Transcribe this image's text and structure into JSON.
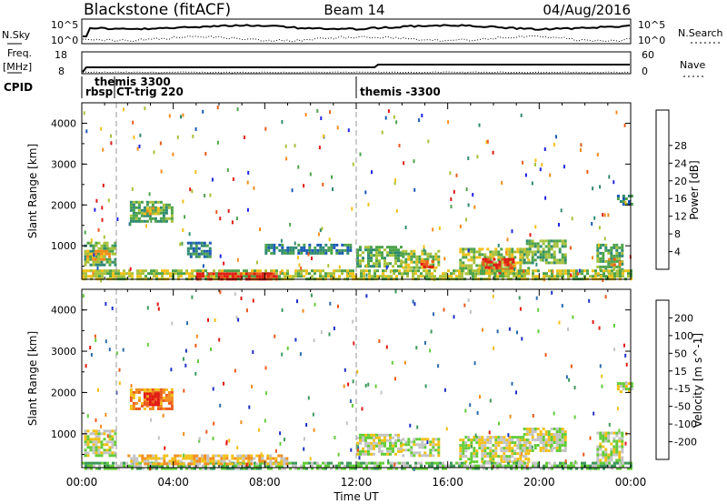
{
  "header": {
    "site": "Blackstone (fitACF)",
    "beam": "Beam 14",
    "date": "04/Aug/2016"
  },
  "noise_panel": {
    "left_label": "N.Sky",
    "left_ticks": [
      "10^5",
      "10^0"
    ],
    "right_ticks": [
      "10^5",
      "10^0"
    ],
    "right_label": "N.Search"
  },
  "freq_panel": {
    "label": "Freq.",
    "unit": "[MHz]",
    "left_ticks": [
      "18",
      "8"
    ],
    "right_ticks": [
      "60",
      "0"
    ],
    "right_label": "Nave"
  },
  "cpid": {
    "label": "CPID",
    "entries": [
      {
        "text": "rbsp",
        "time": 0.0
      },
      {
        "text": "themis 3300",
        "time": 1.4
      },
      {
        "text": "CT-trig 220",
        "time": 1.4
      },
      {
        "text": "themis -3300",
        "time": 12.0
      }
    ]
  },
  "time_axis": {
    "label": "Time UT",
    "ticks": [
      "00:00",
      "04:00",
      "08:00",
      "12:00",
      "16:00",
      "20:00",
      "00:00"
    ]
  },
  "chart_data": [
    {
      "type": "heatmap",
      "name": "power",
      "ylabel": "Slant Range [km]",
      "x_range_hours": [
        0,
        24
      ],
      "ylim": [
        180,
        4500
      ],
      "yticks": [
        1000,
        2000,
        3000,
        4000
      ],
      "colorbar_label": "Power [dB]",
      "colorbar_ticks": [
        "4",
        "8",
        "12",
        "16",
        "20",
        "24",
        "28"
      ],
      "colors": [
        "#1e24e6",
        "#1a5ab4",
        "#2f8a72",
        "#4da34a",
        "#a8c23c",
        "#f2c018",
        "#f28c1c",
        "#ea5a1c",
        "#e01a14"
      ],
      "patches": [
        {
          "t": [
            0.1,
            1.5
          ],
          "r": [
            500,
            1100
          ],
          "level": 3
        },
        {
          "t": [
            0.2,
            1.2
          ],
          "r": [
            650,
            900
          ],
          "level": 5
        },
        {
          "t": [
            2.1,
            3.9
          ],
          "r": [
            1600,
            2100
          ],
          "level": 3
        },
        {
          "t": [
            2.7,
            3.3
          ],
          "r": [
            1750,
            1950
          ],
          "level": 5
        },
        {
          "t": [
            4.6,
            5.6
          ],
          "r": [
            700,
            1100
          ],
          "level": 2
        },
        {
          "t": [
            8.0,
            11.8
          ],
          "r": [
            800,
            1050
          ],
          "level": 2
        },
        {
          "t": [
            12.0,
            14.0
          ],
          "r": [
            500,
            1000
          ],
          "level": 3
        },
        {
          "t": [
            14.0,
            15.6
          ],
          "r": [
            450,
            900
          ],
          "level": 4
        },
        {
          "t": [
            14.8,
            15.3
          ],
          "r": [
            500,
            650
          ],
          "level": 7
        },
        {
          "t": [
            16.5,
            19.5
          ],
          "r": [
            300,
            950
          ],
          "level": 4
        },
        {
          "t": [
            17.5,
            18.9
          ],
          "r": [
            350,
            700
          ],
          "level": 8
        },
        {
          "t": [
            19.3,
            21.2
          ],
          "r": [
            600,
            1150
          ],
          "level": 3
        },
        {
          "t": [
            22.5,
            23.6
          ],
          "r": [
            300,
            1050
          ],
          "level": 3
        },
        {
          "t": [
            23.0,
            23.5
          ],
          "r": [
            500,
            700
          ],
          "level": 7
        },
        {
          "t": [
            23.4,
            24.0
          ],
          "r": [
            2000,
            2250
          ],
          "level": 2
        },
        {
          "t": [
            0.0,
            24.0
          ],
          "r": [
            180,
            420
          ],
          "level": 4
        },
        {
          "t": [
            5.0,
            8.5
          ],
          "r": [
            200,
            350
          ],
          "level": 8
        }
      ]
    },
    {
      "type": "heatmap",
      "name": "velocity",
      "ylabel": "Slant Range [km]",
      "x_range_hours": [
        0,
        24
      ],
      "ylim": [
        180,
        4500
      ],
      "yticks": [
        1000,
        2000,
        3000,
        4000
      ],
      "colorbar_label": "Velocity [m s^-1]",
      "colorbar_ticks": [
        "200",
        "100",
        "50",
        "15",
        "-15",
        "-50",
        "-100",
        "-200"
      ],
      "colors": [
        "#1e30c8",
        "#2d6aaa",
        "#3c9a5a",
        "#63cc3a",
        "#c4c4c4",
        "#f2c018",
        "#f28c1c",
        "#ea5a1c",
        "#e01a14"
      ],
      "patches": [
        {
          "t": [
            0.1,
            1.5
          ],
          "r": [
            500,
            1100
          ],
          "level": 4
        },
        {
          "t": [
            2.1,
            3.9
          ],
          "r": [
            1600,
            2100
          ],
          "level": 6
        },
        {
          "t": [
            2.7,
            3.4
          ],
          "r": [
            1700,
            2000
          ],
          "level": 8
        },
        {
          "t": [
            12.0,
            14.0
          ],
          "r": [
            500,
            1000
          ],
          "level": 4
        },
        {
          "t": [
            14.0,
            15.6
          ],
          "r": [
            450,
            900
          ],
          "level": 4
        },
        {
          "t": [
            16.5,
            19.5
          ],
          "r": [
            300,
            950
          ],
          "level": 4
        },
        {
          "t": [
            19.3,
            21.2
          ],
          "r": [
            600,
            1150
          ],
          "level": 4
        },
        {
          "t": [
            22.5,
            23.6
          ],
          "r": [
            300,
            1050
          ],
          "level": 4
        },
        {
          "t": [
            23.4,
            24.0
          ],
          "r": [
            2000,
            2250
          ],
          "level": 4
        },
        {
          "t": [
            0.0,
            24.0
          ],
          "r": [
            180,
            320
          ],
          "level": 3
        },
        {
          "t": [
            2.0,
            9.0
          ],
          "r": [
            280,
            500
          ],
          "level": 5
        }
      ]
    }
  ]
}
